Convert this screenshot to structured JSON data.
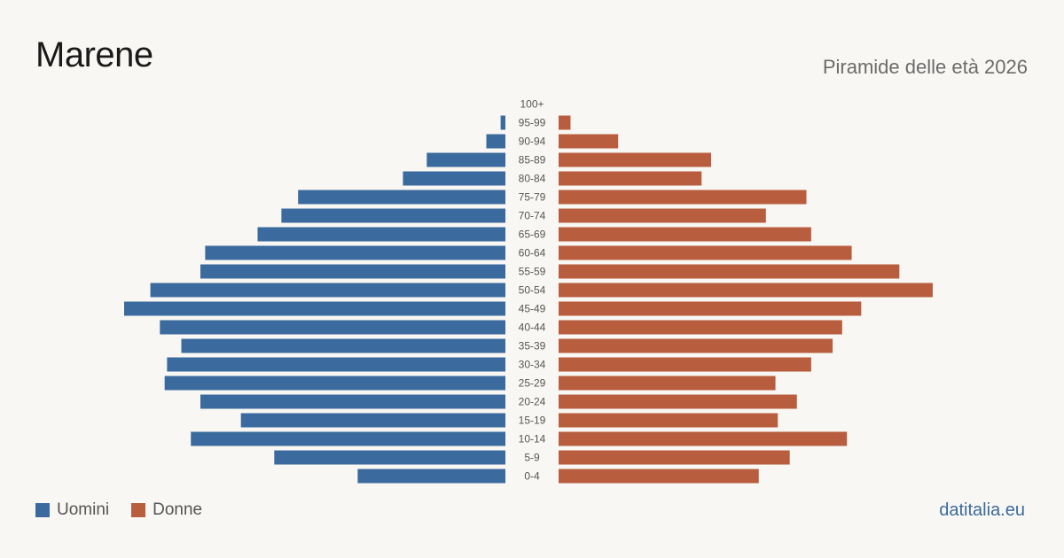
{
  "header": {
    "title": "Marene",
    "subtitle": "Piramide delle età 2026"
  },
  "legend": {
    "men_label": "Uomini",
    "women_label": "Donne"
  },
  "footer": {
    "site": "datitalia.eu"
  },
  "colors": {
    "men": "#3b6b9e",
    "women": "#b85d3e"
  },
  "chart_data": {
    "type": "bar",
    "orientation": "horizontal-diverging",
    "categories": [
      "100+",
      "95-99",
      "90-94",
      "85-89",
      "80-84",
      "75-79",
      "70-74",
      "65-69",
      "60-64",
      "55-59",
      "50-54",
      "45-49",
      "40-44",
      "35-39",
      "30-34",
      "25-29",
      "20-24",
      "15-19",
      "10-14",
      "5-9",
      "0-4"
    ],
    "series": [
      {
        "name": "Uomini",
        "side": "left",
        "values": [
          0,
          2,
          8,
          33,
          43,
          87,
          94,
          104,
          126,
          128,
          149,
          160,
          145,
          136,
          142,
          143,
          128,
          111,
          132,
          97,
          62
        ]
      },
      {
        "name": "Donne",
        "side": "right",
        "values": [
          0,
          5,
          25,
          64,
          60,
          104,
          87,
          106,
          123,
          143,
          157,
          127,
          119,
          115,
          106,
          91,
          100,
          92,
          121,
          97,
          84
        ]
      }
    ],
    "xlim": [
      0,
      160
    ],
    "grid": false,
    "legend_position": "bottom-left"
  }
}
